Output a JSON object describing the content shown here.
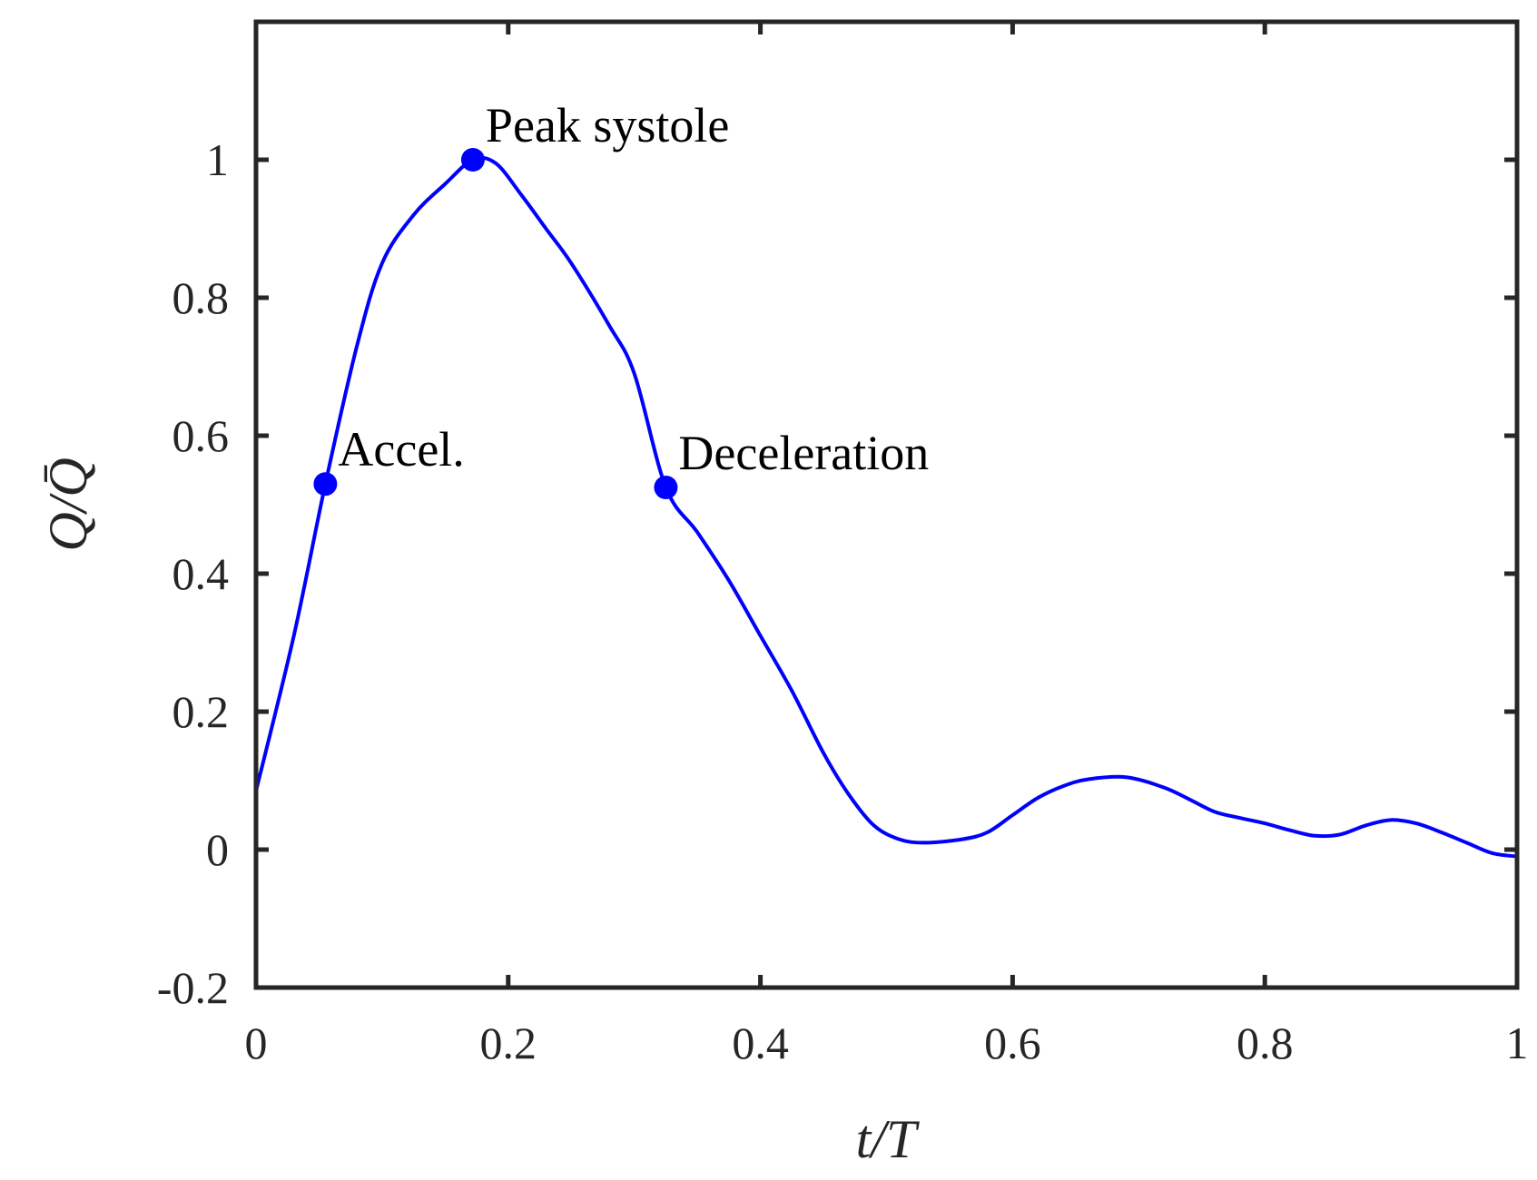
{
  "chart_data": {
    "type": "line",
    "xlabel": "t/T",
    "ylabel": "Q/Q̄",
    "xlim": [
      0,
      1
    ],
    "ylim": [
      -0.2,
      1.2
    ],
    "xticks": [
      0,
      0.2,
      0.4,
      0.6,
      0.8,
      1
    ],
    "xtick_labels": [
      "0",
      "0.2",
      "0.4",
      "0.6",
      "0.8",
      "1"
    ],
    "yticks": [
      -0.2,
      0,
      0.2,
      0.4,
      0.6,
      0.8,
      1
    ],
    "ytick_labels": [
      "-0.2",
      "0",
      "0.2",
      "0.4",
      "0.6",
      "0.8",
      "1"
    ],
    "grid": false,
    "line_color": "#0000ff",
    "series": [
      {
        "x": [
          0,
          0.03,
          0.055,
          0.08,
          0.1,
          0.125,
          0.15,
          0.172,
          0.19,
          0.21,
          0.23,
          0.25,
          0.28,
          0.3,
          0.325,
          0.35,
          0.375,
          0.4,
          0.425,
          0.45,
          0.47,
          0.49,
          0.51,
          0.53,
          0.56,
          0.58,
          0.6,
          0.62,
          0.64,
          0.66,
          0.69,
          0.72,
          0.74,
          0.76,
          0.78,
          0.8,
          0.82,
          0.84,
          0.86,
          0.88,
          0.9,
          0.92,
          0.94,
          0.96,
          0.98,
          1.0
        ],
        "y": [
          0.085,
          0.31,
          0.53,
          0.73,
          0.85,
          0.92,
          0.965,
          1.0,
          0.995,
          0.95,
          0.9,
          0.85,
          0.76,
          0.69,
          0.525,
          0.46,
          0.39,
          0.31,
          0.23,
          0.14,
          0.08,
          0.035,
          0.015,
          0.01,
          0.015,
          0.025,
          0.05,
          0.075,
          0.092,
          0.102,
          0.105,
          0.09,
          0.073,
          0.055,
          0.046,
          0.038,
          0.028,
          0.02,
          0.022,
          0.035,
          0.043,
          0.038,
          0.025,
          0.01,
          -0.005,
          -0.01
        ]
      }
    ],
    "markers": [
      {
        "x": 0.055,
        "y": 0.53,
        "label": "Accel."
      },
      {
        "x": 0.172,
        "y": 1.0,
        "label": "Peak systole"
      },
      {
        "x": 0.325,
        "y": 0.525,
        "label": "Deceleration"
      }
    ]
  }
}
